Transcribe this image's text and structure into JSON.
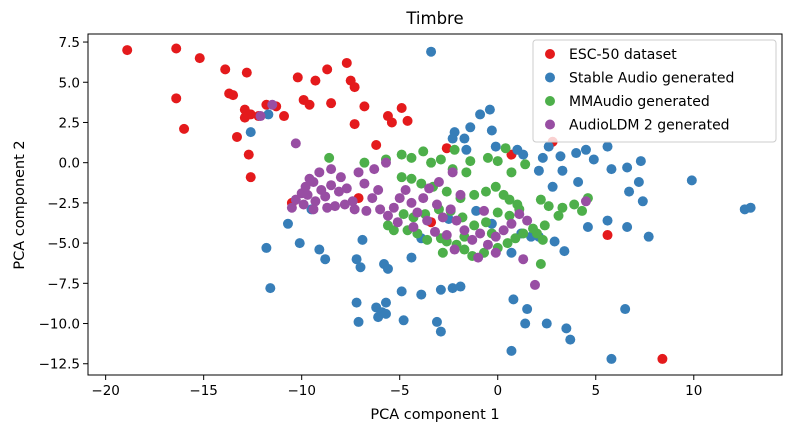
{
  "chart_data": {
    "type": "scatter",
    "title": "Timbre",
    "xlabel": "PCA component 1",
    "ylabel": "PCA component 2",
    "xlim": [
      -20.9,
      14.5
    ],
    "ylim": [
      -13.2,
      8.0
    ],
    "xticks": [
      -20,
      -15,
      -10,
      -5,
      0,
      5,
      10
    ],
    "yticks": [
      -12.5,
      -10.0,
      -7.5,
      -5.0,
      -2.5,
      0.0,
      2.5,
      5.0,
      7.5
    ],
    "xtick_labels": [
      "−20",
      "−15",
      "−10",
      "−5",
      "0",
      "5",
      "10"
    ],
    "ytick_labels": [
      "−12.5",
      "−10.0",
      "−7.5",
      "−5.0",
      "−2.5",
      "0.0",
      "2.5",
      "5.0",
      "7.5"
    ],
    "legend_position": "top-right",
    "series": [
      {
        "name": "ESC-50 dataset",
        "color": "#e41a1c",
        "points": [
          [
            -18.9,
            7.0
          ],
          [
            -16.4,
            7.1
          ],
          [
            -15.2,
            6.5
          ],
          [
            -16.0,
            2.1
          ],
          [
            -16.4,
            4.0
          ],
          [
            -13.9,
            5.8
          ],
          [
            -13.7,
            4.3
          ],
          [
            -13.5,
            4.2
          ],
          [
            -12.8,
            5.6
          ],
          [
            -12.9,
            3.3
          ],
          [
            -12.9,
            2.8
          ],
          [
            -12.6,
            3.0
          ],
          [
            -13.3,
            1.6
          ],
          [
            -12.7,
            0.5
          ],
          [
            -12.6,
            -0.9
          ],
          [
            -12.2,
            2.9
          ],
          [
            -11.8,
            3.6
          ],
          [
            -11.3,
            3.5
          ],
          [
            -10.9,
            2.9
          ],
          [
            -9.9,
            3.9
          ],
          [
            -10.2,
            5.3
          ],
          [
            -9.6,
            3.6
          ],
          [
            -9.3,
            5.1
          ],
          [
            -8.7,
            5.8
          ],
          [
            -8.5,
            3.7
          ],
          [
            -7.7,
            6.2
          ],
          [
            -7.5,
            5.1
          ],
          [
            -7.3,
            4.7
          ],
          [
            -6.8,
            3.5
          ],
          [
            -7.3,
            2.4
          ],
          [
            -5.6,
            2.9
          ],
          [
            -5.4,
            2.5
          ],
          [
            -6.2,
            1.1
          ],
          [
            -4.9,
            3.4
          ],
          [
            -4.6,
            2.6
          ],
          [
            -2.6,
            0.9
          ],
          [
            0.7,
            0.5
          ],
          [
            2.8,
            1.3
          ],
          [
            -10.5,
            -2.5
          ],
          [
            5.6,
            -4.5
          ],
          [
            8.4,
            -12.2
          ],
          [
            -7.1,
            -2.2
          ],
          [
            -3.4,
            -3.7
          ]
        ]
      },
      {
        "name": "Stable Audio generated",
        "color": "#377eb8",
        "points": [
          [
            -3.4,
            6.9
          ],
          [
            -2.2,
            1.9
          ],
          [
            -1.7,
            1.5
          ],
          [
            -1.6,
            0.8
          ],
          [
            -1.4,
            2.2
          ],
          [
            -0.9,
            3.0
          ],
          [
            -0.4,
            3.3
          ],
          [
            -0.3,
            2.0
          ],
          [
            -0.1,
            1.0
          ],
          [
            1.0,
            0.8
          ],
          [
            1.3,
            0.5
          ],
          [
            2.6,
            1.0
          ],
          [
            2.3,
            0.3
          ],
          [
            2.1,
            -0.5
          ],
          [
            3.2,
            0.4
          ],
          [
            3.3,
            -0.5
          ],
          [
            2.8,
            -1.5
          ],
          [
            4.0,
            0.6
          ],
          [
            4.5,
            0.8
          ],
          [
            4.9,
            0.2
          ],
          [
            5.6,
            1.0
          ],
          [
            5.8,
            -0.4
          ],
          [
            6.6,
            -0.3
          ],
          [
            4.1,
            -1.2
          ],
          [
            6.7,
            -1.8
          ],
          [
            7.3,
            0.1
          ],
          [
            7.2,
            -1.2
          ],
          [
            7.4,
            -2.4
          ],
          [
            9.9,
            -1.1
          ],
          [
            12.6,
            -2.9
          ],
          [
            12.9,
            -2.8
          ],
          [
            6.6,
            -4.0
          ],
          [
            4.6,
            -4.0
          ],
          [
            3.4,
            -5.5
          ],
          [
            5.6,
            -3.6
          ],
          [
            7.7,
            -4.6
          ],
          [
            2.9,
            -4.9
          ],
          [
            1.2,
            -4.4
          ],
          [
            1.7,
            -4.6
          ],
          [
            2.1,
            -4.6
          ],
          [
            0.7,
            -5.6
          ],
          [
            -2.3,
            -7.8
          ],
          [
            -1.9,
            -7.7
          ],
          [
            -2.9,
            -7.9
          ],
          [
            -3.9,
            -8.2
          ],
          [
            -4.9,
            -8.0
          ],
          [
            -5.7,
            -8.7
          ],
          [
            -6.2,
            -9.0
          ],
          [
            -5.9,
            -9.3
          ],
          [
            -6.1,
            -9.6
          ],
          [
            -5.7,
            -9.4
          ],
          [
            -4.8,
            -9.8
          ],
          [
            -7.2,
            -8.7
          ],
          [
            -7.1,
            -9.9
          ],
          [
            -3.1,
            -9.9
          ],
          [
            -2.9,
            -10.5
          ],
          [
            0.8,
            -8.5
          ],
          [
            1.5,
            -9.1
          ],
          [
            1.4,
            -10.0
          ],
          [
            2.5,
            -10.0
          ],
          [
            3.5,
            -10.3
          ],
          [
            6.5,
            -9.1
          ],
          [
            0.7,
            -11.7
          ],
          [
            3.7,
            -11.0
          ],
          [
            5.8,
            -12.2
          ],
          [
            -11.6,
            -7.8
          ],
          [
            -11.8,
            -5.3
          ],
          [
            -10.1,
            -5.0
          ],
          [
            -10.7,
            -3.8
          ],
          [
            -9.5,
            -2.9
          ],
          [
            -8.8,
            -6.0
          ],
          [
            -9.1,
            -5.4
          ],
          [
            -7.2,
            -6.0
          ],
          [
            -7.0,
            -6.5
          ],
          [
            -6.9,
            -4.8
          ],
          [
            -5.8,
            -6.3
          ],
          [
            -5.6,
            -6.6
          ],
          [
            -4.4,
            -5.9
          ],
          [
            -3.9,
            -4.7
          ],
          [
            -2.5,
            -3.5
          ],
          [
            -1.1,
            -3.0
          ],
          [
            -0.3,
            -3.8
          ],
          [
            -12.6,
            1.9
          ],
          [
            -11.7,
            3.0
          ],
          [
            -2.3,
            1.5
          ]
        ]
      },
      {
        "name": "MMAudio generated",
        "color": "#4daf4a",
        "points": [
          [
            -8.6,
            0.3
          ],
          [
            -6.8,
            0.0
          ],
          [
            -5.7,
            0.2
          ],
          [
            -4.9,
            0.5
          ],
          [
            -4.4,
            0.3
          ],
          [
            -3.4,
            0.0
          ],
          [
            -2.9,
            0.2
          ],
          [
            -2.2,
            0.8
          ],
          [
            -1.4,
            0.1
          ],
          [
            -0.5,
            0.3
          ],
          [
            0.0,
            0.1
          ],
          [
            0.4,
            0.9
          ],
          [
            1.4,
            -0.1
          ],
          [
            -4.9,
            -0.9
          ],
          [
            -4.4,
            -1.0
          ],
          [
            -3.9,
            -1.3
          ],
          [
            -3.3,
            -1.5
          ],
          [
            -2.6,
            -1.8
          ],
          [
            -1.9,
            -2.2
          ],
          [
            -1.2,
            -2.0
          ],
          [
            -0.6,
            -1.8
          ],
          [
            -0.1,
            -1.5
          ],
          [
            0.3,
            -2.0
          ],
          [
            0.6,
            -2.3
          ],
          [
            1.0,
            -2.6
          ],
          [
            2.2,
            -2.3
          ],
          [
            2.6,
            -2.7
          ],
          [
            3.3,
            -2.8
          ],
          [
            3.9,
            -2.6
          ],
          [
            4.3,
            -3.0
          ],
          [
            4.6,
            -2.2
          ],
          [
            3.1,
            -3.3
          ],
          [
            2.4,
            -3.9
          ],
          [
            2.0,
            -4.4
          ],
          [
            1.8,
            -4.1
          ],
          [
            1.3,
            -4.4
          ],
          [
            0.9,
            -4.7
          ],
          [
            0.5,
            -5.0
          ],
          [
            0.0,
            -5.3
          ],
          [
            -0.7,
            -5.6
          ],
          [
            -1.3,
            -5.8
          ],
          [
            -1.7,
            -5.4
          ],
          [
            -2.1,
            -5.1
          ],
          [
            -2.6,
            -4.9
          ],
          [
            -2.9,
            -4.7
          ],
          [
            -3.6,
            -4.8
          ],
          [
            -4.1,
            -4.4
          ],
          [
            -4.6,
            -4.2
          ],
          [
            -5.3,
            -4.2
          ],
          [
            -5.6,
            -3.9
          ],
          [
            -4.8,
            -3.2
          ],
          [
            -4.3,
            -3.4
          ],
          [
            -3.7,
            -3.2
          ],
          [
            -3.0,
            -2.9
          ],
          [
            -2.4,
            -3.0
          ],
          [
            -1.8,
            -3.4
          ],
          [
            -1.2,
            -3.9
          ],
          [
            -0.6,
            -3.7
          ],
          [
            0.0,
            -3.1
          ],
          [
            0.6,
            -3.3
          ],
          [
            1.1,
            -2.9
          ],
          [
            2.2,
            -6.3
          ],
          [
            -2.3,
            -0.4
          ],
          [
            -1.6,
            -0.6
          ],
          [
            -3.8,
            0.7
          ],
          [
            0.7,
            -0.6
          ],
          [
            2.3,
            -4.8
          ],
          [
            -0.3,
            -4.4
          ],
          [
            -1.7,
            -4.6
          ],
          [
            -2.8,
            -5.6
          ]
        ]
      },
      {
        "name": "AudioLDM 2 generated",
        "color": "#984ea3",
        "points": [
          [
            -12.1,
            2.9
          ],
          [
            -11.5,
            3.6
          ],
          [
            -10.3,
            1.2
          ],
          [
            -10.0,
            -1.9
          ],
          [
            -10.3,
            -2.3
          ],
          [
            -9.8,
            -1.5
          ],
          [
            -9.7,
            -2.0
          ],
          [
            -9.4,
            -1.2
          ],
          [
            -9.3,
            -2.4
          ],
          [
            -9.0,
            -1.7
          ],
          [
            -9.1,
            -0.6
          ],
          [
            -8.8,
            -2.1
          ],
          [
            -8.5,
            -1.4
          ],
          [
            -8.3,
            -2.7
          ],
          [
            -8.1,
            -1.8
          ],
          [
            -8.7,
            -2.8
          ],
          [
            -9.4,
            -2.9
          ],
          [
            -9.9,
            -2.6
          ],
          [
            -8.0,
            -0.9
          ],
          [
            -7.7,
            -1.6
          ],
          [
            -7.4,
            -2.4
          ],
          [
            -7.1,
            -0.6
          ],
          [
            -6.8,
            -1.3
          ],
          [
            -6.4,
            -2.2
          ],
          [
            -6.0,
            -2.9
          ],
          [
            -5.6,
            -3.3
          ],
          [
            -5.3,
            -2.8
          ],
          [
            -5.0,
            -2.2
          ],
          [
            -4.7,
            -1.7
          ],
          [
            -4.4,
            -2.5
          ],
          [
            -4.1,
            -3.1
          ],
          [
            -3.8,
            -2.2
          ],
          [
            -3.5,
            -1.6
          ],
          [
            -3.1,
            -2.6
          ],
          [
            -2.8,
            -3.4
          ],
          [
            -2.4,
            -2.9
          ],
          [
            -2.1,
            -3.6
          ],
          [
            -1.7,
            -4.2
          ],
          [
            -1.3,
            -4.8
          ],
          [
            -0.9,
            -4.4
          ],
          [
            -0.5,
            -5.1
          ],
          [
            -0.1,
            -4.6
          ],
          [
            0.3,
            -4.2
          ],
          [
            0.7,
            -3.8
          ],
          [
            1.1,
            -3.2
          ],
          [
            1.5,
            -3.6
          ],
          [
            1.3,
            -6.0
          ],
          [
            1.9,
            -7.6
          ],
          [
            4.5,
            -2.4
          ],
          [
            -2.3,
            -0.6
          ],
          [
            -5.7,
            0.0
          ],
          [
            -6.3,
            -0.4
          ],
          [
            -4.3,
            -4.0
          ],
          [
            -3.2,
            -4.3
          ],
          [
            -2.2,
            -5.4
          ],
          [
            -1.0,
            -5.9
          ],
          [
            -0.1,
            -5.6
          ],
          [
            -0.7,
            -3.0
          ],
          [
            -1.9,
            -2.0
          ],
          [
            -3.0,
            -1.2
          ],
          [
            -6.7,
            -3.0
          ],
          [
            -7.8,
            -2.6
          ],
          [
            -10.5,
            -2.8
          ],
          [
            -9.6,
            -1.0
          ],
          [
            -8.5,
            -0.4
          ],
          [
            -7.3,
            -2.9
          ],
          [
            -6.1,
            -1.7
          ],
          [
            -5.1,
            -3.7
          ],
          [
            -3.6,
            -3.6
          ],
          [
            -2.6,
            -4.5
          ]
        ]
      }
    ]
  }
}
